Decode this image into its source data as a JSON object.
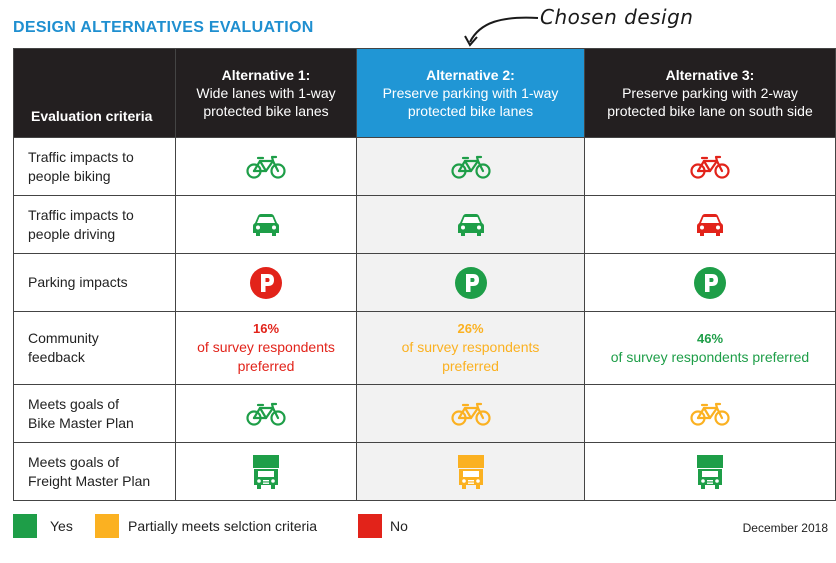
{
  "title": "DESIGN ALTERNATIVES EVALUATION",
  "annotation": "Chosen design",
  "header": {
    "criteria": "Evaluation criteria",
    "alternatives": [
      {
        "title": "Alternative 1:",
        "line1": "Wide lanes with 1-way",
        "line2": "protected bike lanes"
      },
      {
        "title": "Alternative 2:",
        "line1": "Preserve parking with 1-way",
        "line2": "protected bike lanes"
      },
      {
        "title": "Alternative 3:",
        "line1": "Preserve parking with 2-way",
        "line2": "protected bike lane on south side"
      }
    ]
  },
  "rows": [
    {
      "criteria": [
        "Traffic impacts to",
        "people biking"
      ],
      "icon": "bicycle-icon",
      "ratings": [
        "yes",
        "yes",
        "no"
      ]
    },
    {
      "criteria": [
        "Traffic impacts to",
        "people driving"
      ],
      "icon": "car-icon",
      "ratings": [
        "yes",
        "yes",
        "no"
      ]
    },
    {
      "criteria": [
        "Parking impacts"
      ],
      "icon": "parking-icon",
      "ratings": [
        "no",
        "yes",
        "yes"
      ]
    },
    {
      "criteria": [
        "Community",
        "feedback"
      ],
      "feedback": [
        {
          "pct": "16%",
          "line1": "of survey respondents",
          "line2": "preferred",
          "rating": "no"
        },
        {
          "pct": "26%",
          "line1": "of survey respondents",
          "line2": "preferred",
          "rating": "partial"
        },
        {
          "pct": "46%",
          "line1": "of survey respondents preferred",
          "line2": "",
          "rating": "yes"
        }
      ]
    },
    {
      "criteria": [
        "Meets goals of",
        "Bike Master Plan"
      ],
      "icon": "bicycle-icon",
      "ratings": [
        "yes",
        "partial",
        "partial"
      ]
    },
    {
      "criteria": [
        "Meets goals of",
        "Freight Master Plan"
      ],
      "icon": "truck-icon",
      "ratings": [
        "yes",
        "partial",
        "yes"
      ]
    }
  ],
  "legend": {
    "yes": "Yes",
    "partial": "Partially meets selction criteria",
    "no": "No"
  },
  "colors": {
    "yes": "#1e9e48",
    "partial": "#fbb121",
    "no": "#e2231a",
    "header_bg": "#231f20",
    "chosen_bg": "#2096d5",
    "title": "#1f8fd0"
  },
  "date": "December 2018"
}
